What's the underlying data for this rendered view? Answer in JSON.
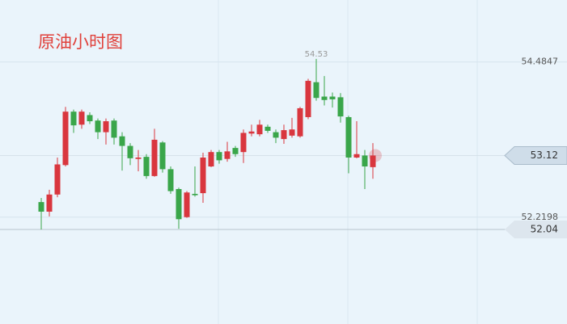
{
  "chart_data": {
    "type": "candlestick",
    "title": "原油小时图",
    "open": [
      52.44,
      52.3,
      52.55,
      52.98,
      53.76,
      53.57,
      53.71,
      53.63,
      53.46,
      53.63,
      53.4,
      53.26,
      53.07,
      53.1,
      52.82,
      53.31,
      52.92,
      52.63,
      52.22,
      52.56,
      52.57,
      52.96,
      53.17,
      53.07,
      53.23,
      53.17,
      53.44,
      53.43,
      53.54,
      53.46,
      53.36,
      53.41,
      53.4,
      53.68,
      54.19,
      53.98,
      53.98,
      53.97,
      53.68,
      53.09,
      53.12,
      52.95
    ],
    "high": [
      52.5,
      52.62,
      53.09,
      53.83,
      53.79,
      53.79,
      53.75,
      53.66,
      53.66,
      53.66,
      53.46,
      53.3,
      53.2,
      53.14,
      53.51,
      53.33,
      52.96,
      52.65,
      52.6,
      52.96,
      53.16,
      53.2,
      53.2,
      53.32,
      53.26,
      53.5,
      53.57,
      53.64,
      53.57,
      53.5,
      53.57,
      53.67,
      53.83,
      54.24,
      54.53,
      54.28,
      54.04,
      54.03,
      53.7,
      53.62,
      53.2,
      53.3
    ],
    "low": [
      52.04,
      52.23,
      52.51,
      52.96,
      53.45,
      53.51,
      53.58,
      53.36,
      53.28,
      53.28,
      52.9,
      52.98,
      52.89,
      52.78,
      52.81,
      52.87,
      52.56,
      52.05,
      52.21,
      52.52,
      52.43,
      52.95,
      53.0,
      53.03,
      53.1,
      53.01,
      53.4,
      53.4,
      53.45,
      53.3,
      53.29,
      53.38,
      53.38,
      53.65,
      53.92,
      53.85,
      53.82,
      53.6,
      52.86,
      53.08,
      52.63,
      52.78
    ],
    "close": [
      52.3,
      52.55,
      52.99,
      53.76,
      53.56,
      53.76,
      53.62,
      53.46,
      53.62,
      53.38,
      53.26,
      53.08,
      53.09,
      52.82,
      53.35,
      52.92,
      52.6,
      52.19,
      52.58,
      52.54,
      53.09,
      53.17,
      53.05,
      53.18,
      53.14,
      53.45,
      53.47,
      53.57,
      53.48,
      53.38,
      53.49,
      53.5,
      53.81,
      54.21,
      53.96,
      53.93,
      53.94,
      53.69,
      53.09,
      53.14,
      52.96,
      53.12
    ],
    "up_color": "#d9363e",
    "down_color": "#3aa64a",
    "ylim": [
      50.66,
      55.39
    ],
    "yticks": [
      52.2198,
      54.4847
    ],
    "grid": true,
    "high_annotation": 54.53,
    "current_price": 53.12,
    "low_line": 52.04
  }
}
